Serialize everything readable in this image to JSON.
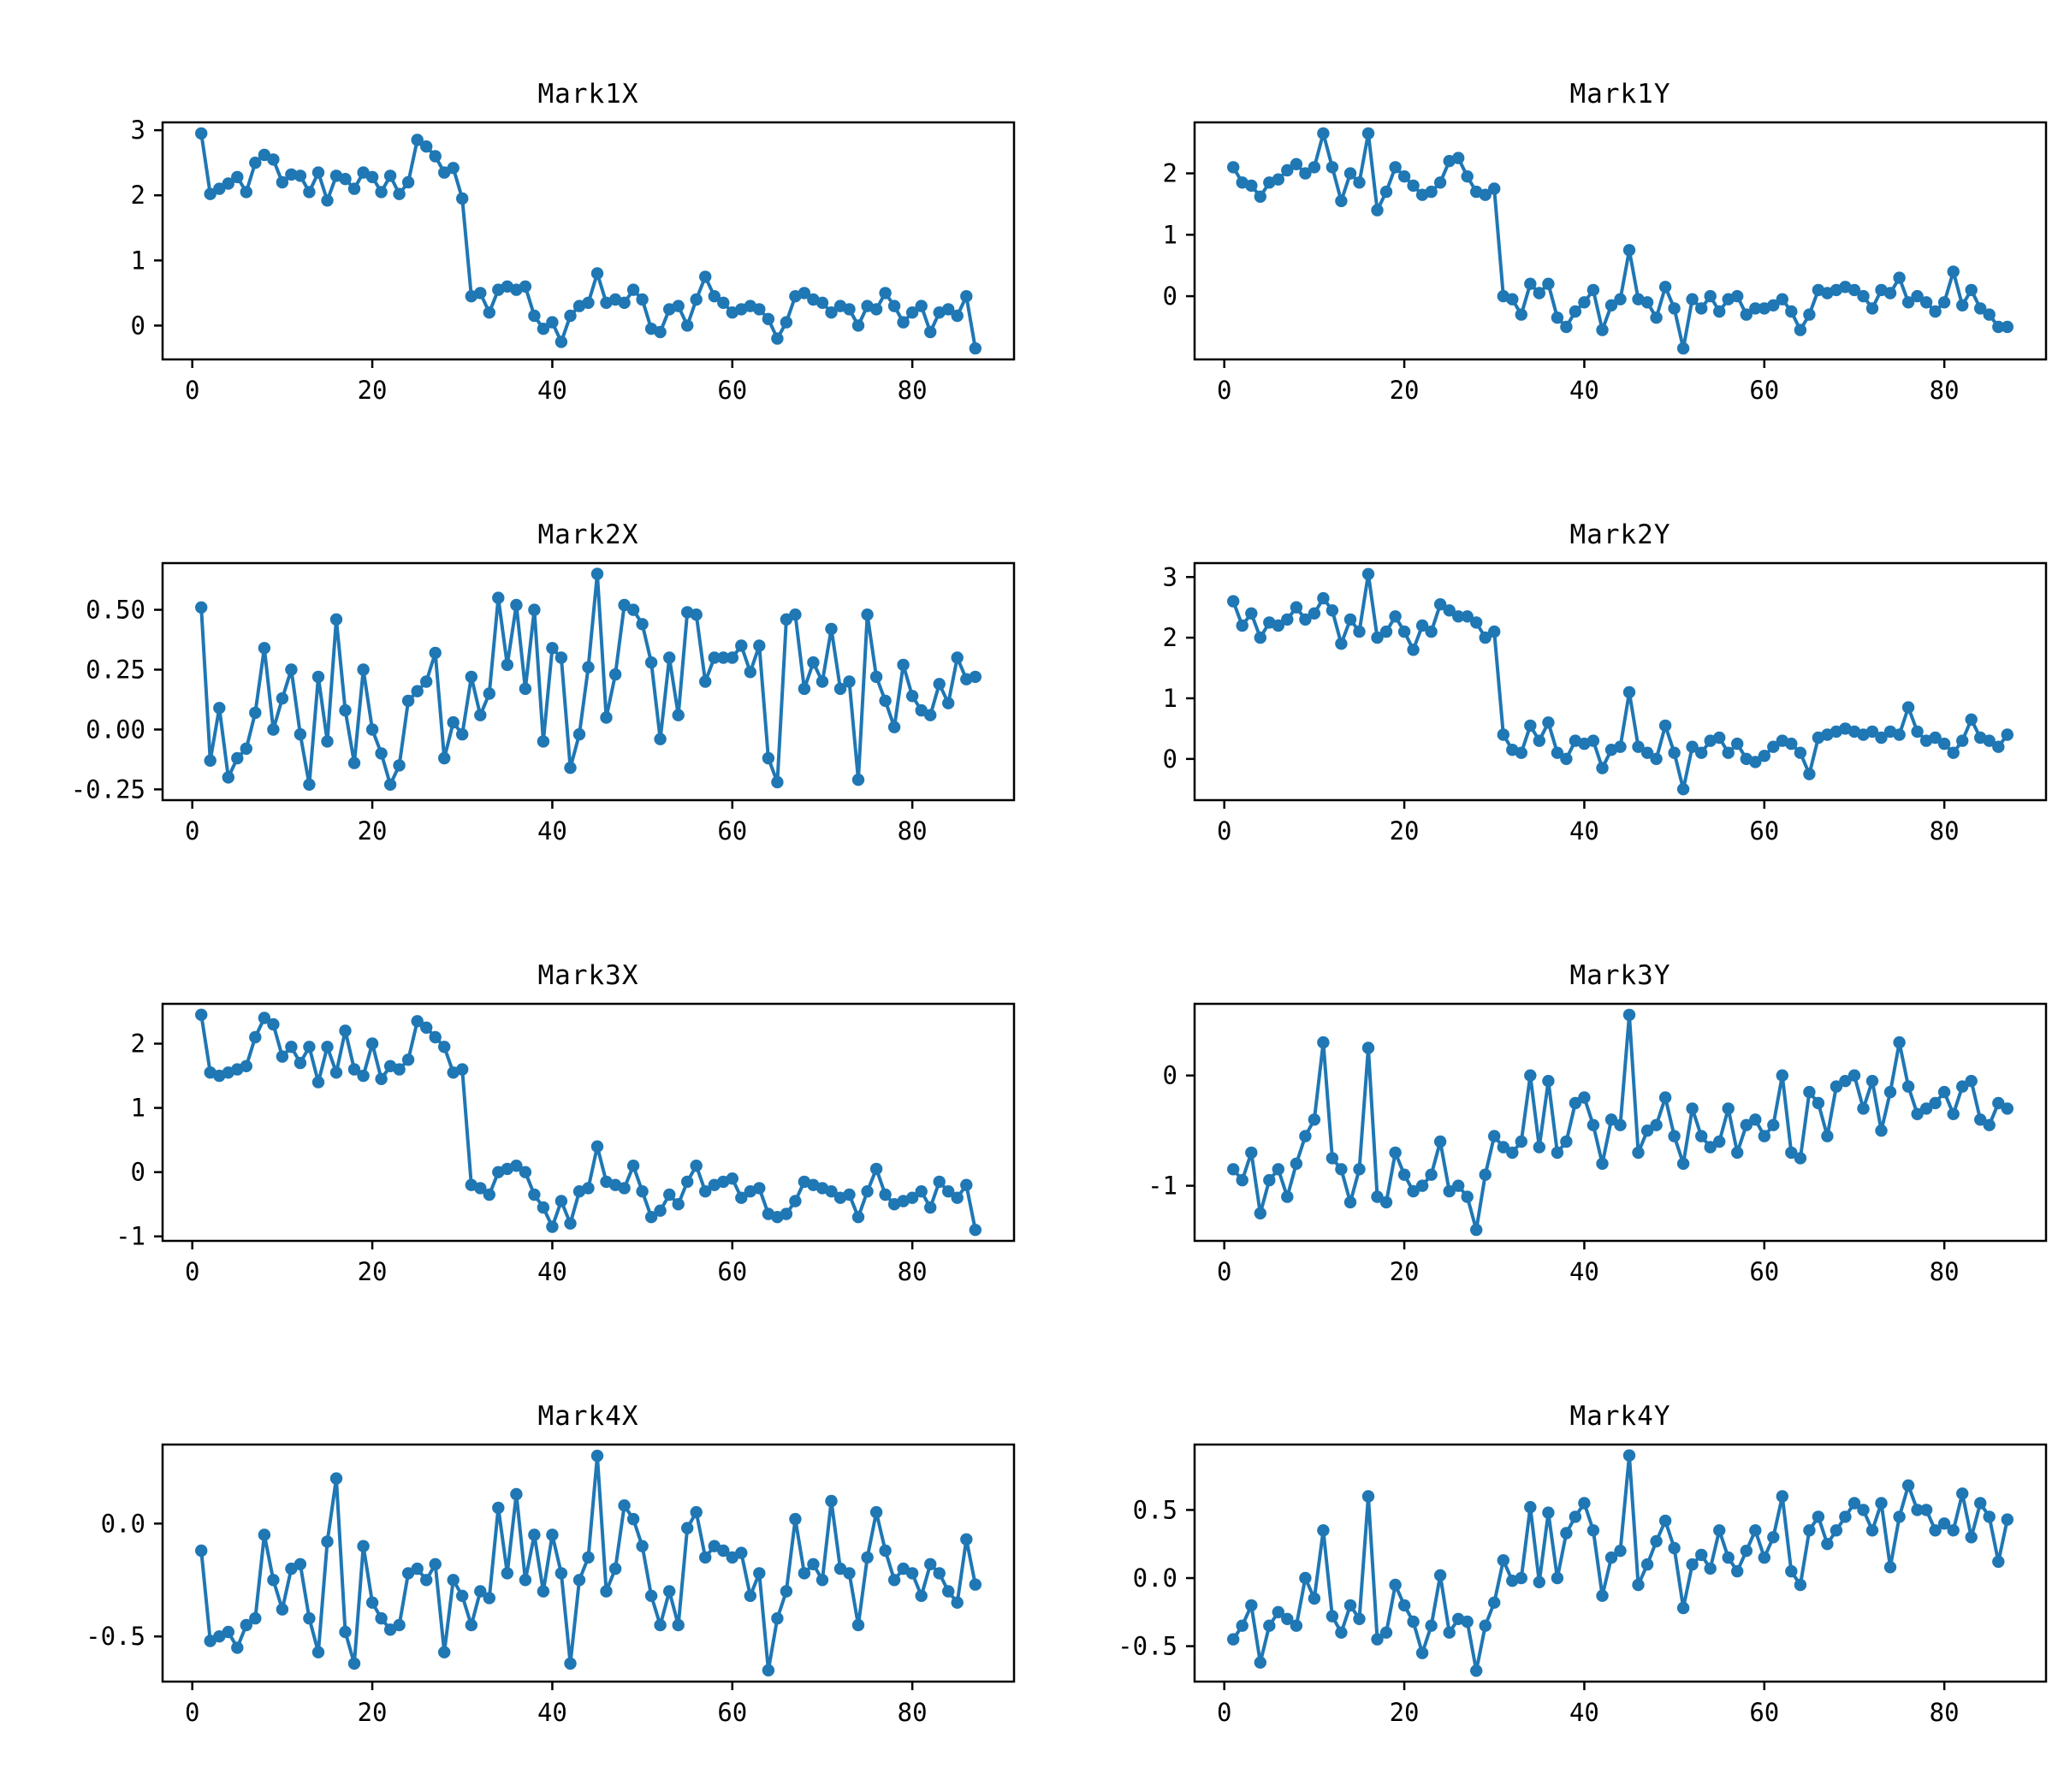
{
  "figure": {
    "background": "#ffffff",
    "rows": 4,
    "columns": 2,
    "series_color": "#1f77b4",
    "axis_color": "#000000",
    "marker": "circle",
    "n_points": 87,
    "x_start": 1,
    "xlim": [
      -3.3,
      91.3
    ],
    "xticks": [
      0,
      20,
      40,
      60,
      80
    ],
    "xtick_labels": [
      "0",
      "20",
      "40",
      "60",
      "80"
    ],
    "grid": false,
    "legend": "none"
  },
  "chart_data": [
    {
      "type": "line",
      "title": "Mark1X",
      "xlabel": "",
      "ylabel": "",
      "ylim": [
        -0.52,
        3.12
      ],
      "yticks": [
        0,
        1,
        2,
        3
      ],
      "ytick_labels": [
        "0",
        "1",
        "2",
        "3"
      ],
      "values": [
        2.95,
        2.02,
        2.1,
        2.18,
        2.28,
        2.05,
        2.5,
        2.62,
        2.55,
        2.2,
        2.32,
        2.3,
        2.05,
        2.35,
        1.92,
        2.3,
        2.25,
        2.1,
        2.35,
        2.28,
        2.05,
        2.3,
        2.02,
        2.2,
        2.85,
        2.75,
        2.6,
        2.35,
        2.42,
        1.95,
        0.45,
        0.5,
        0.2,
        0.55,
        0.6,
        0.55,
        0.6,
        0.15,
        -0.05,
        0.05,
        -0.25,
        0.15,
        0.3,
        0.35,
        0.8,
        0.35,
        0.4,
        0.35,
        0.55,
        0.4,
        -0.05,
        -0.1,
        0.25,
        0.3,
        0.0,
        0.4,
        0.75,
        0.45,
        0.35,
        0.2,
        0.25,
        0.3,
        0.25,
        0.1,
        -0.2,
        0.05,
        0.45,
        0.5,
        0.4,
        0.35,
        0.2,
        0.3,
        0.25,
        0.0,
        0.3,
        0.25,
        0.5,
        0.3,
        0.05,
        0.2,
        0.3,
        -0.1,
        0.2,
        0.25,
        0.15,
        0.45,
        -0.35
      ]
    },
    {
      "type": "line",
      "title": "Mark1Y",
      "xlabel": "",
      "ylabel": "",
      "ylim": [
        -1.03,
        2.83
      ],
      "yticks": [
        0,
        1,
        2
      ],
      "ytick_labels": [
        "0",
        "1",
        "2"
      ],
      "values": [
        2.1,
        1.85,
        1.8,
        1.62,
        1.85,
        1.9,
        2.05,
        2.15,
        2.0,
        2.1,
        2.65,
        2.1,
        1.55,
        2.0,
        1.85,
        2.65,
        1.4,
        1.7,
        2.1,
        1.95,
        1.8,
        1.65,
        1.7,
        1.85,
        2.2,
        2.25,
        1.95,
        1.7,
        1.65,
        1.75,
        0.0,
        -0.05,
        -0.3,
        0.2,
        0.05,
        0.2,
        -0.35,
        -0.5,
        -0.25,
        -0.1,
        0.1,
        -0.55,
        -0.15,
        -0.05,
        0.75,
        -0.05,
        -0.1,
        -0.35,
        0.15,
        -0.2,
        -0.85,
        -0.05,
        -0.2,
        0.0,
        -0.25,
        -0.05,
        0.0,
        -0.3,
        -0.2,
        -0.2,
        -0.15,
        -0.05,
        -0.25,
        -0.55,
        -0.3,
        0.1,
        0.05,
        0.1,
        0.15,
        0.1,
        0.0,
        -0.2,
        0.1,
        0.05,
        0.3,
        -0.1,
        0.0,
        -0.1,
        -0.25,
        -0.1,
        0.4,
        -0.15,
        0.1,
        -0.2,
        -0.3,
        -0.5,
        -0.5
      ]
    },
    {
      "type": "line",
      "title": "Mark2X",
      "xlabel": "",
      "ylabel": "",
      "ylim": [
        -0.295,
        0.695
      ],
      "yticks": [
        -0.25,
        0.0,
        0.25,
        0.5
      ],
      "ytick_labels": [
        "-0.25",
        "0.00",
        "0.25",
        "0.50"
      ],
      "values": [
        0.51,
        -0.13,
        0.09,
        -0.2,
        -0.12,
        -0.08,
        0.07,
        0.34,
        0.0,
        0.13,
        0.25,
        -0.02,
        -0.23,
        0.22,
        -0.05,
        0.46,
        0.08,
        -0.14,
        0.25,
        0.0,
        -0.1,
        -0.23,
        -0.15,
        0.12,
        0.16,
        0.2,
        0.32,
        -0.12,
        0.03,
        -0.02,
        0.22,
        0.06,
        0.15,
        0.55,
        0.27,
        0.52,
        0.17,
        0.5,
        -0.05,
        0.34,
        0.3,
        -0.16,
        -0.02,
        0.26,
        0.65,
        0.05,
        0.23,
        0.52,
        0.5,
        0.44,
        0.28,
        -0.04,
        0.3,
        0.06,
        0.49,
        0.48,
        0.2,
        0.3,
        0.3,
        0.3,
        0.35,
        0.24,
        0.35,
        -0.12,
        -0.22,
        0.46,
        0.48,
        0.17,
        0.28,
        0.2,
        0.42,
        0.17,
        0.2,
        -0.21,
        0.48,
        0.22,
        0.12,
        0.01,
        0.27,
        0.14,
        0.08,
        0.06,
        0.19,
        0.11,
        0.3,
        0.21,
        0.22
      ]
    },
    {
      "type": "line",
      "title": "Mark2Y",
      "xlabel": "",
      "ylabel": "",
      "ylim": [
        -0.68,
        3.23
      ],
      "yticks": [
        0,
        1,
        2,
        3
      ],
      "ytick_labels": [
        "0",
        "1",
        "2",
        "3"
      ],
      "values": [
        2.6,
        2.2,
        2.4,
        2.0,
        2.25,
        2.2,
        2.3,
        2.5,
        2.3,
        2.4,
        2.65,
        2.45,
        1.9,
        2.3,
        2.1,
        3.05,
        2.0,
        2.1,
        2.35,
        2.1,
        1.8,
        2.2,
        2.1,
        2.55,
        2.45,
        2.35,
        2.35,
        2.25,
        2.0,
        2.1,
        0.4,
        0.15,
        0.1,
        0.55,
        0.3,
        0.6,
        0.1,
        0.0,
        0.3,
        0.25,
        0.3,
        -0.15,
        0.15,
        0.2,
        1.1,
        0.2,
        0.1,
        0.0,
        0.55,
        0.1,
        -0.5,
        0.2,
        0.1,
        0.3,
        0.35,
        0.1,
        0.25,
        0.0,
        -0.05,
        0.05,
        0.2,
        0.3,
        0.25,
        0.1,
        -0.25,
        0.35,
        0.4,
        0.45,
        0.5,
        0.45,
        0.4,
        0.45,
        0.35,
        0.45,
        0.4,
        0.85,
        0.45,
        0.3,
        0.35,
        0.25,
        0.1,
        0.3,
        0.65,
        0.35,
        0.3,
        0.2,
        0.4
      ]
    },
    {
      "type": "line",
      "title": "Mark3X",
      "xlabel": "",
      "ylabel": "",
      "ylim": [
        -1.07,
        2.62
      ],
      "yticks": [
        -1,
        0,
        1,
        2
      ],
      "ytick_labels": [
        "-1",
        "0",
        "1",
        "2"
      ],
      "values": [
        2.45,
        1.55,
        1.5,
        1.55,
        1.6,
        1.65,
        2.1,
        2.4,
        2.3,
        1.8,
        1.95,
        1.7,
        1.95,
        1.4,
        1.95,
        1.55,
        2.2,
        1.6,
        1.5,
        2.0,
        1.45,
        1.65,
        1.6,
        1.75,
        2.35,
        2.25,
        2.1,
        1.95,
        1.55,
        1.6,
        -0.2,
        -0.25,
        -0.35,
        0.0,
        0.05,
        0.1,
        0.0,
        -0.35,
        -0.55,
        -0.85,
        -0.45,
        -0.8,
        -0.3,
        -0.25,
        0.4,
        -0.15,
        -0.2,
        -0.25,
        0.1,
        -0.3,
        -0.7,
        -0.6,
        -0.35,
        -0.5,
        -0.15,
        0.1,
        -0.3,
        -0.2,
        -0.15,
        -0.1,
        -0.4,
        -0.3,
        -0.25,
        -0.65,
        -0.7,
        -0.65,
        -0.45,
        -0.15,
        -0.2,
        -0.25,
        -0.3,
        -0.4,
        -0.35,
        -0.7,
        -0.3,
        0.05,
        -0.35,
        -0.5,
        -0.45,
        -0.4,
        -0.3,
        -0.55,
        -0.15,
        -0.3,
        -0.4,
        -0.2,
        -0.9
      ]
    },
    {
      "type": "line",
      "title": "Mark3Y",
      "xlabel": "",
      "ylabel": "",
      "ylim": [
        -1.5,
        0.65
      ],
      "yticks": [
        -1,
        0
      ],
      "ytick_labels": [
        "-1",
        "0"
      ],
      "values": [
        -0.85,
        -0.95,
        -0.7,
        -1.25,
        -0.95,
        -0.85,
        -1.1,
        -0.8,
        -0.55,
        -0.4,
        0.3,
        -0.75,
        -0.85,
        -1.15,
        -0.85,
        0.25,
        -1.1,
        -1.15,
        -0.7,
        -0.9,
        -1.05,
        -1.0,
        -0.9,
        -0.6,
        -1.05,
        -1.0,
        -1.1,
        -1.4,
        -0.9,
        -0.55,
        -0.65,
        -0.7,
        -0.6,
        0.0,
        -0.65,
        -0.05,
        -0.7,
        -0.6,
        -0.25,
        -0.2,
        -0.45,
        -0.8,
        -0.4,
        -0.45,
        0.55,
        -0.7,
        -0.5,
        -0.45,
        -0.2,
        -0.55,
        -0.8,
        -0.3,
        -0.55,
        -0.65,
        -0.6,
        -0.3,
        -0.7,
        -0.45,
        -0.4,
        -0.55,
        -0.45,
        0.0,
        -0.7,
        -0.75,
        -0.15,
        -0.25,
        -0.55,
        -0.1,
        -0.05,
        0.0,
        -0.3,
        -0.05,
        -0.5,
        -0.15,
        0.3,
        -0.1,
        -0.35,
        -0.3,
        -0.25,
        -0.15,
        -0.35,
        -0.1,
        -0.05,
        -0.4,
        -0.45,
        -0.25,
        -0.3
      ]
    },
    {
      "type": "line",
      "title": "Mark4X",
      "xlabel": "",
      "ylabel": "",
      "ylim": [
        -0.7,
        0.35
      ],
      "yticks": [
        -0.5,
        0.0
      ],
      "ytick_labels": [
        "-0.5",
        "0.0"
      ],
      "values": [
        -0.12,
        -0.52,
        -0.5,
        -0.48,
        -0.55,
        -0.45,
        -0.42,
        -0.05,
        -0.25,
        -0.38,
        -0.2,
        -0.18,
        -0.42,
        -0.57,
        -0.08,
        0.2,
        -0.48,
        -0.62,
        -0.1,
        -0.35,
        -0.42,
        -0.47,
        -0.45,
        -0.22,
        -0.2,
        -0.25,
        -0.18,
        -0.57,
        -0.25,
        -0.32,
        -0.45,
        -0.3,
        -0.33,
        0.07,
        -0.22,
        0.13,
        -0.25,
        -0.05,
        -0.3,
        -0.05,
        -0.22,
        -0.62,
        -0.25,
        -0.15,
        0.3,
        -0.3,
        -0.2,
        0.08,
        0.02,
        -0.1,
        -0.32,
        -0.45,
        -0.3,
        -0.45,
        -0.02,
        0.05,
        -0.15,
        -0.1,
        -0.12,
        -0.15,
        -0.13,
        -0.32,
        -0.22,
        -0.65,
        -0.42,
        -0.3,
        0.02,
        -0.22,
        -0.18,
        -0.25,
        0.1,
        -0.2,
        -0.22,
        -0.45,
        -0.15,
        0.05,
        -0.12,
        -0.25,
        -0.2,
        -0.22,
        -0.32,
        -0.18,
        -0.22,
        -0.3,
        -0.35,
        -0.07,
        -0.27
      ]
    },
    {
      "type": "line",
      "title": "Mark4Y",
      "xlabel": "",
      "ylabel": "",
      "ylim": [
        -0.76,
        0.98
      ],
      "yticks": [
        -0.5,
        0.0,
        0.5
      ],
      "ytick_labels": [
        "-0.5",
        "0.0",
        "0.5"
      ],
      "values": [
        -0.45,
        -0.35,
        -0.2,
        -0.62,
        -0.35,
        -0.25,
        -0.3,
        -0.35,
        0.0,
        -0.15,
        0.35,
        -0.28,
        -0.4,
        -0.2,
        -0.3,
        0.6,
        -0.45,
        -0.4,
        -0.05,
        -0.2,
        -0.32,
        -0.55,
        -0.35,
        0.02,
        -0.4,
        -0.3,
        -0.32,
        -0.68,
        -0.35,
        -0.18,
        0.13,
        -0.02,
        0.0,
        0.52,
        -0.03,
        0.48,
        0.0,
        0.33,
        0.45,
        0.55,
        0.35,
        -0.13,
        0.15,
        0.2,
        0.9,
        -0.05,
        0.1,
        0.27,
        0.42,
        0.22,
        -0.22,
        0.1,
        0.17,
        0.07,
        0.35,
        0.15,
        0.05,
        0.2,
        0.35,
        0.15,
        0.3,
        0.6,
        0.05,
        -0.05,
        0.35,
        0.45,
        0.25,
        0.35,
        0.45,
        0.55,
        0.5,
        0.35,
        0.55,
        0.08,
        0.45,
        0.68,
        0.5,
        0.5,
        0.35,
        0.4,
        0.35,
        0.62,
        0.3,
        0.55,
        0.45,
        0.12,
        0.43
      ]
    }
  ]
}
